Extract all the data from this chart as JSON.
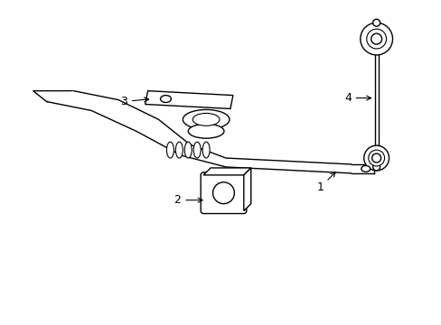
{
  "background_color": "#ffffff",
  "line_color": "#000000",
  "lw": 1.0
}
